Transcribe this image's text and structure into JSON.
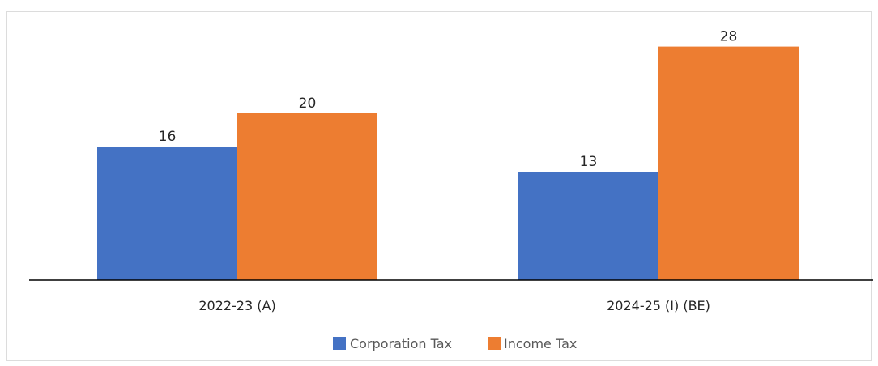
{
  "chart_data": {
    "type": "bar",
    "title": "",
    "xlabel": "",
    "ylabel": "",
    "categories": [
      "2022-23 (A)",
      "2024-25 (I) (BE)"
    ],
    "series": [
      {
        "name": "Corporation Tax",
        "values": [
          16,
          13
        ],
        "color": "#4472C4"
      },
      {
        "name": "Income Tax",
        "values": [
          20,
          28
        ],
        "color": "#ED7D31"
      }
    ],
    "ylim": [
      0,
      30
    ],
    "grid": false,
    "data_labels": true,
    "legend_position": "bottom",
    "axis_color": "#000000",
    "text_color": "#262626"
  }
}
